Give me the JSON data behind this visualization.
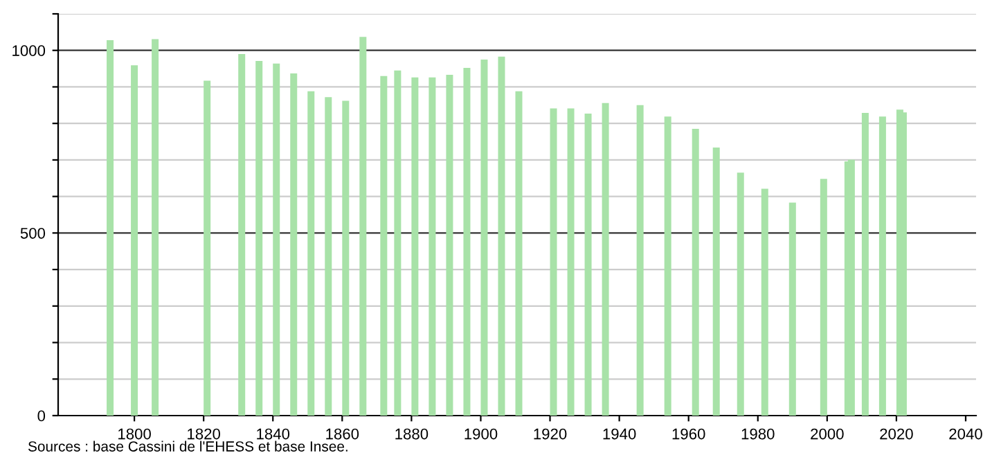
{
  "chart_data": {
    "type": "bar",
    "x": [
      1793,
      1800,
      1806,
      1821,
      1831,
      1836,
      1841,
      1846,
      1851,
      1856,
      1861,
      1866,
      1872,
      1876,
      1881,
      1886,
      1891,
      1896,
      1901,
      1906,
      1911,
      1921,
      1926,
      1931,
      1936,
      1946,
      1954,
      1962,
      1968,
      1975,
      1982,
      1990,
      1999,
      2006,
      2007,
      2011,
      2016,
      2021,
      2022
    ],
    "values": [
      1028,
      959,
      1031,
      917,
      990,
      971,
      964,
      937,
      888,
      872,
      862,
      1037,
      930,
      945,
      926,
      926,
      933,
      952,
      975,
      983,
      888,
      841,
      841,
      827,
      856,
      850,
      819,
      785,
      734,
      665,
      621,
      583,
      648,
      696,
      701,
      829,
      819,
      838,
      830
    ],
    "color": "#a8e2a8",
    "xlim": [
      1778,
      2043
    ],
    "xticks": [
      1800,
      1820,
      1840,
      1860,
      1880,
      1900,
      1920,
      1940,
      1960,
      1980,
      2000,
      2020,
      2040
    ],
    "ylim": [
      0,
      1100
    ],
    "yticks": [
      0,
      {
        "value": 100,
        "label": null
      },
      {
        "value": 200,
        "label": null
      },
      {
        "value": 300,
        "label": null
      },
      {
        "value": 400,
        "label": null
      },
      500,
      {
        "value": 600,
        "label": null
      },
      {
        "value": 700,
        "label": null
      },
      {
        "value": 800,
        "label": null
      },
      {
        "value": 900,
        "label": null
      },
      1000,
      {
        "value": 1100,
        "label": null
      }
    ],
    "grid": "y",
    "annotations": [
      "Sources : base Cassini de l'EHESS et base Insee."
    ]
  }
}
